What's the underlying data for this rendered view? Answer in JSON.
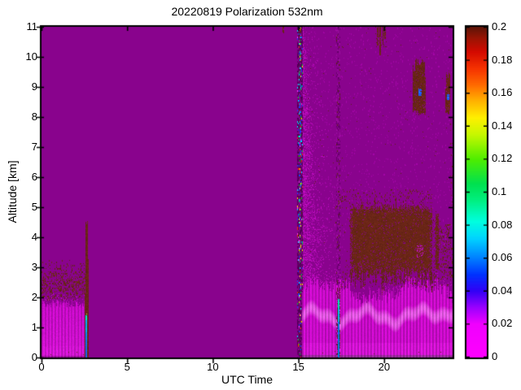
{
  "chart_data": {
    "type": "heatmap",
    "title": "20220819 Polarization 532nm",
    "xlabel": "UTC Time",
    "ylabel": "Altitude [km]",
    "x_range": [
      0,
      24
    ],
    "y_range": [
      0,
      11
    ],
    "grid": false,
    "x_ticks": [
      0,
      5,
      10,
      15,
      20
    ],
    "x_tick_labels": [
      "0",
      "5",
      "10",
      "15",
      "20"
    ],
    "y_ticks": [
      0,
      1,
      2,
      3,
      4,
      5,
      6,
      7,
      8,
      9,
      10,
      11
    ],
    "y_tick_labels": [
      "0",
      "1",
      "2",
      "3",
      "4",
      "5",
      "6",
      "7",
      "8",
      "9",
      "10",
      "11"
    ],
    "colorbar": {
      "range": [
        0,
        0.2
      ],
      "ticks": [
        0,
        0.02,
        0.04,
        0.06,
        0.08,
        0.1,
        0.12,
        0.14,
        0.16,
        0.18,
        0.2
      ],
      "labels": [
        "0",
        "0.02",
        "0.04",
        "0.06",
        "0.08",
        "0.1",
        "0.12",
        "0.14",
        "0.16",
        "0.18",
        "0.2"
      ],
      "position": "right"
    },
    "colormap_stops": [
      [
        0.0,
        "#FF00FF"
      ],
      [
        0.02,
        "#F000FE"
      ],
      [
        0.03,
        "#9B00FF"
      ],
      [
        0.04,
        "#3300F6"
      ],
      [
        0.05,
        "#0033FF"
      ],
      [
        0.06,
        "#0080FF"
      ],
      [
        0.072,
        "#00D4FF"
      ],
      [
        0.082,
        "#00FFE0"
      ],
      [
        0.095,
        "#00F080"
      ],
      [
        0.105,
        "#00E150"
      ],
      [
        0.12,
        "#50EE00"
      ],
      [
        0.135,
        "#C8F800"
      ],
      [
        0.145,
        "#FFF000"
      ],
      [
        0.155,
        "#FFB400"
      ],
      [
        0.165,
        "#FF6A00"
      ],
      [
        0.175,
        "#F63200"
      ],
      [
        0.185,
        "#D40A00"
      ],
      [
        0.193,
        "#9C1404"
      ],
      [
        0.2,
        "#5E1408"
      ]
    ],
    "background": {
      "value": 0.02,
      "color": "#89038D"
    },
    "palette": {
      "maroon": "#6B2617",
      "magenta_base": "#C30AC3",
      "magenta_bright": "#E021E0",
      "magenta_block2": "#C70BC7",
      "band_pink": "#EE7AEE",
      "bottom_strip": "#982B9B",
      "dark1": "#66006A",
      "dark2": "#4F0053",
      "dark3": "#99109D",
      "blue": "#1A3CFF",
      "cyan": "#00E0FF",
      "green": "#00C838",
      "yellow": "#FFE400",
      "red": "#F03000",
      "spot_blue": "#1E5AFF",
      "spot_cyan": "#00D0FF",
      "noise_magenta": "#B008B4",
      "noise_magenta2": "#CC10CC",
      "faint_dot": "#9C0AA0",
      "hole_magenta": "#C010C0",
      "blue_core_lo": "#1C5CF0",
      "blue_core_mid": "#0090FF",
      "blue_core_hi": "#00B4FF",
      "blue_core_tip": "#00F0D0",
      "tip_spark": "#A8FF50",
      "core2_lo": "#0080E8",
      "core2_mid": "#00C4F0",
      "core2_hi": "#00E8C4"
    },
    "features": [
      {
        "kind": "left_block",
        "name": "boundary-layer-low-depol",
        "t0": 0,
        "t1": 2.58,
        "top": 1.8,
        "value": 0.006
      },
      {
        "kind": "speckle_layer",
        "name": "left-aerosol-speckle-layer",
        "t0": 0,
        "t1": 2.56,
        "a0": 1.9,
        "a1": 3.3,
        "peak_a": 2.45,
        "p_max": 0.55,
        "value": 0.2
      },
      {
        "kind": "event_streak",
        "name": "event-streak-0235",
        "t_m0": 2.54,
        "t_m1": 2.74,
        "maroon_top": 4.5,
        "t_b0": 2.58,
        "t_b1": 2.68,
        "blue_top": 1.42,
        "value_maroon": 0.2,
        "value_blue": 0.05
      },
      {
        "kind": "noise_column",
        "name": "noise-column-1500",
        "t0": 14.9,
        "t1": 15.24,
        "colored_p": 0.28,
        "maroon_cap_a": 10.7
      },
      {
        "kind": "wedge",
        "name": "magenta-noise-wedge",
        "t_start": 15.24,
        "t_edge_a0": 17.55,
        "slope": -0.205,
        "p_max": 0.5
      },
      {
        "kind": "bottom_block",
        "name": "bottom-right-magenta-layer",
        "t0": 15.22,
        "t1": 24,
        "top_base": 2.5,
        "top_amp1": 0.28,
        "top_f1": 1.15,
        "top_phase": 15.2,
        "top_amp2": 0.1,
        "top_f2": 3.3,
        "band_base": 1.66,
        "band_amp1": 0.2,
        "band_f1": 2.0,
        "band_phase": 15,
        "band_amp2": 0.09,
        "band_f2": 5.7,
        "value": 0.006
      },
      {
        "kind": "dark_column",
        "name": "noise-column-1720",
        "t0": 17.22,
        "t1": 17.46,
        "core_t0": 17.3,
        "core_t1": 17.4,
        "blue_top": 1.95,
        "value_blue": 0.05
      },
      {
        "kind": "speckle_layer",
        "name": "maroon-band-over-layer",
        "t0": 17.45,
        "t1": 24,
        "a0": 2.35,
        "a1": 3.3,
        "peak_a": 2.8,
        "p_max": 0.34,
        "fade_before": 18,
        "value": 0.2
      },
      {
        "kind": "blob",
        "name": "depol-cloud-main",
        "t0": 18.02,
        "t1": 22.82,
        "top": 5.02,
        "bottom": 3.05,
        "value": 0.2,
        "hole_cluster": {
          "t0": 21.9,
          "t1": 22.25,
          "a0": 3.35,
          "a1": 3.75
        }
      },
      {
        "kind": "speckle_box",
        "name": "cloud-top-speckles",
        "t0": 17.3,
        "t1": 22.8,
        "a0": 5.0,
        "a1": 5.6,
        "p": 0.12,
        "value": 0.2
      },
      {
        "kind": "speckle_box",
        "name": "pre-cloud-speckles",
        "t0": 17.15,
        "t1": 18.0,
        "a0": 4.1,
        "a1": 5.0,
        "p": 0.05,
        "value": 0.2
      },
      {
        "kind": "speckle_box",
        "name": "post-cloud-speckles-1",
        "t0": 22.82,
        "t1": 23.3,
        "a0": 3.0,
        "a1": 4.6,
        "p": 0.2,
        "value": 0.2
      },
      {
        "kind": "column_box",
        "name": "post-cloud-column",
        "t0": 22.98,
        "t1": 23.18,
        "a0": 2.95,
        "a1": 4.8,
        "p": 0.8,
        "value": 0.2
      },
      {
        "kind": "speckle_box",
        "name": "post-cloud-speckles-2",
        "t0": 23.3,
        "t1": 23.92,
        "a0": 3.0,
        "a1": 4.45,
        "p": 0.35,
        "value": 0.2
      },
      {
        "kind": "speckle_box",
        "name": "post-cloud-speckles-3",
        "t0": 23.92,
        "t1": 24,
        "a0": 3.1,
        "a1": 4.2,
        "p": 0.15,
        "value": 0.2
      },
      {
        "kind": "icicles",
        "name": "top-edge-streaks-2000",
        "items": [
          {
            "t": 19.58,
            "a_end": 10.38,
            "w": 2
          },
          {
            "t": 19.73,
            "a_end": 10.08,
            "w": 2
          },
          {
            "t": 19.89,
            "a_end": 10.42,
            "w": 1
          },
          {
            "t": 20.03,
            "a_end": 10.62,
            "w": 2
          }
        ],
        "halo": {
          "t0": 19.5,
          "t1": 20.15,
          "a0": 10.3,
          "a1": 11,
          "p": 0.1
        },
        "value": 0.2
      },
      {
        "kind": "speckle_box",
        "name": "top-edge-dash-1405",
        "t0": 14.06,
        "t1": 14.16,
        "a0": 10.82,
        "a1": 11,
        "p": 0.8,
        "value": 0.2
      },
      {
        "kind": "patch",
        "name": "cirrus-patch-2200",
        "t0": 21.68,
        "t1": 22.42,
        "a0": 8.05,
        "a1": 10.0,
        "blue_spot": {
          "t0": 22.0,
          "t1": 22.15,
          "a0": 8.72,
          "a1": 8.95
        },
        "value": 0.2
      },
      {
        "kind": "patch",
        "name": "cirrus-patch-2342",
        "t0": 23.56,
        "t1": 23.86,
        "a0": 8.08,
        "a1": 9.6,
        "blue_spot": {
          "t0": 23.66,
          "t1": 23.76,
          "a0": 8.58,
          "a1": 8.78
        },
        "value": 0.2
      },
      {
        "kind": "speckle_box",
        "name": "right-border-speckles",
        "t0": 23.88,
        "t1": 24,
        "a0": 5.0,
        "a1": 8.0,
        "p": 0.12,
        "value": 0.2
      },
      {
        "kind": "ambient",
        "name": "sparse-upper-noise",
        "t0": 15.3,
        "t1": 24,
        "a0": 3.3,
        "a1": 11,
        "n_magenta": 1500,
        "n_maroon": 130
      }
    ]
  }
}
